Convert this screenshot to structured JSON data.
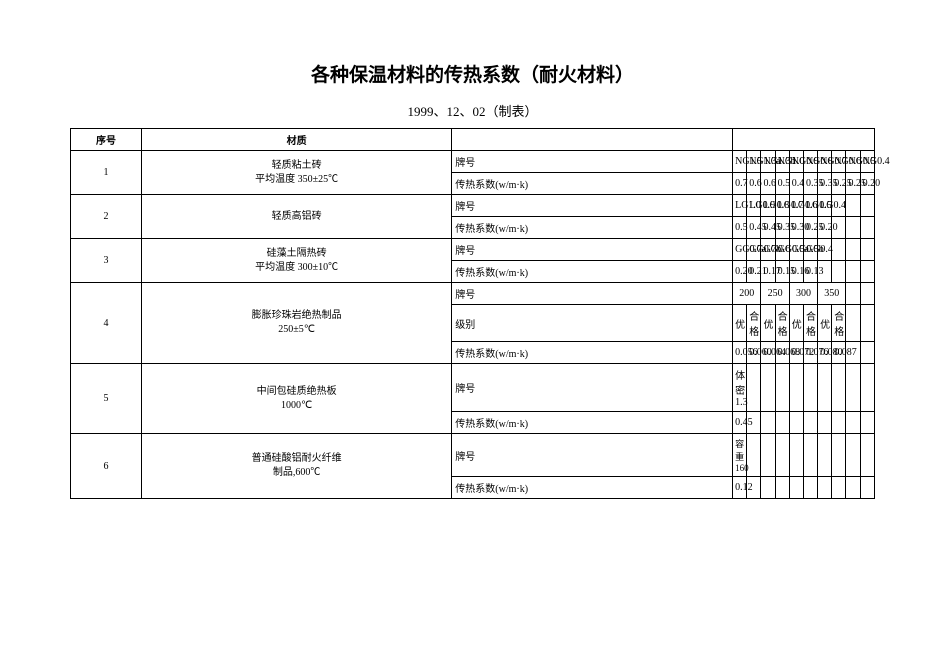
{
  "title": "各种保温材料的传热系数（耐火材料）",
  "subtitle": "1999、12、02（制表）",
  "headers": {
    "num": "序号",
    "material": "材质"
  },
  "labels": {
    "ph": "牌号",
    "coeff": "传热系数(w/m·k)",
    "grade": "级别",
    "excellent": "优",
    "qualified": "合格"
  },
  "row1": {
    "num": "1",
    "material_l1": "轻质粘土砖",
    "material_l2": "平均温度 350±25℃",
    "ph": [
      "NG1.5",
      "NG1.3a",
      "NG1.3b",
      "NG1.0",
      "NG0.9",
      "NG0.8",
      "NG0.7",
      "NG0.6",
      "NG0.5",
      "NG0.4"
    ],
    "coeff": [
      "0.7",
      "0.6",
      "0.6",
      "0.5",
      "0.4",
      "0.35",
      "0.35",
      "0.25",
      "0.25",
      "0.20"
    ]
  },
  "row2": {
    "num": "2",
    "material": "轻质高铝砖",
    "ph": [
      "LG1.0",
      "LG0.9",
      "LG0.8",
      "LG0.7",
      "LG0.6",
      "LG0.5",
      "LG0.4",
      "",
      "",
      ""
    ],
    "coeff": [
      "0.5",
      "0.45",
      "0.45",
      "0.35",
      "0.30",
      "0.25",
      "0.20",
      "",
      "",
      ""
    ]
  },
  "row3": {
    "num": "3",
    "material_l1": "硅藻土隔热砖",
    "material_l2": "平均温度 300±10℃",
    "ph": [
      "GG0.7a",
      "GG0.7b",
      "GG0.6",
      "GG0.5a",
      "GG0.5b",
      "GG0.4",
      "",
      "",
      "",
      ""
    ],
    "coeff": [
      "0.20",
      "0.21",
      "0.17",
      "0.15",
      "0.16",
      "0.13",
      "",
      "",
      "",
      ""
    ]
  },
  "row4": {
    "num": "4",
    "material_l1": "膨胀珍珠岩绝热制品",
    "material_l2": "250±5℃",
    "ph_groups": [
      "200",
      "250",
      "300",
      "350"
    ],
    "coeff": [
      "0.056",
      "0.060",
      "0.064",
      "0.068",
      "0.072",
      "0.076",
      "0.080",
      "0.087",
      "",
      ""
    ]
  },
  "row5": {
    "num": "5",
    "material_l1": "中间包硅质绝热板",
    "material_l2": "1000℃",
    "ph": [
      "体密 1.3",
      "",
      "",
      "",
      "",
      "",
      "",
      "",
      "",
      ""
    ],
    "coeff": [
      "0.45",
      "",
      "",
      "",
      "",
      "",
      "",
      "",
      "",
      ""
    ]
  },
  "row6": {
    "num": "6",
    "material_l1": "普通硅酸铝耐火纤维",
    "material_l2": "制品,600℃",
    "ph_l1": "容重",
    "ph_l2": "160",
    "coeff": [
      "0.12",
      "",
      "",
      "",
      "",
      "",
      "",
      "",
      "",
      ""
    ]
  }
}
